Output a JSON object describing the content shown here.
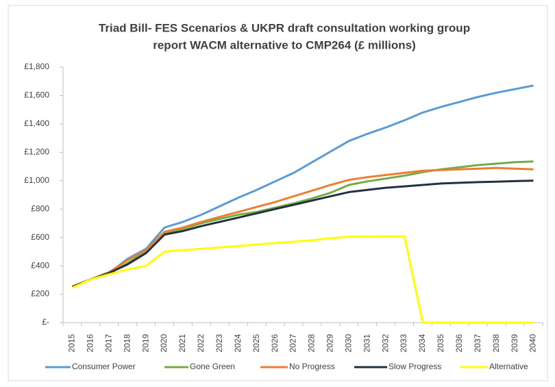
{
  "chart_data": {
    "type": "line",
    "title": [
      "Triad Bill- FES Scenarios & UKPR draft consultation working group",
      "report WACM alternative to CMP264 (£ millions)"
    ],
    "categories": [
      "2015",
      "2016",
      "2017",
      "2018",
      "2019",
      "2020",
      "2021",
      "2022",
      "2023",
      "2024",
      "2025",
      "2026",
      "2027",
      "2028",
      "2029",
      "2030",
      "2031",
      "2032",
      "2033",
      "2034",
      "2035",
      "2036",
      "2037",
      "2038",
      "2039",
      "2040"
    ],
    "series": [
      {
        "name": "Consumer Power",
        "color": "#5b9bd5",
        "values": [
          255,
          305,
          350,
          450,
          520,
          670,
          710,
          760,
          820,
          880,
          935,
          995,
          1055,
          1130,
          1205,
          1280,
          1330,
          1375,
          1425,
          1480,
          1520,
          1555,
          1590,
          1620,
          1645,
          1670
        ]
      },
      {
        "name": "Gone Green",
        "color": "#70ad47",
        "values": [
          250,
          305,
          345,
          420,
          500,
          630,
          660,
          700,
          730,
          760,
          780,
          810,
          840,
          875,
          915,
          970,
          995,
          1015,
          1035,
          1060,
          1080,
          1095,
          1110,
          1120,
          1130,
          1135
        ]
      },
      {
        "name": "No Progress",
        "color": "#ed7d31",
        "values": [
          255,
          305,
          355,
          440,
          510,
          640,
          670,
          710,
          745,
          780,
          815,
          850,
          890,
          930,
          970,
          1005,
          1025,
          1040,
          1055,
          1070,
          1075,
          1080,
          1085,
          1090,
          1085,
          1080
        ]
      },
      {
        "name": "Slow Progress",
        "color": "#223041",
        "values": [
          250,
          305,
          350,
          410,
          490,
          620,
          645,
          680,
          710,
          740,
          770,
          800,
          830,
          860,
          890,
          920,
          935,
          950,
          960,
          970,
          980,
          985,
          990,
          993,
          997,
          1000
        ]
      },
      {
        "name": "Alternative",
        "color": "#ffff00",
        "values": [
          245,
          305,
          340,
          375,
          400,
          500,
          510,
          520,
          530,
          540,
          550,
          560,
          570,
          580,
          595,
          605,
          607,
          608,
          608,
          0,
          0,
          0,
          0,
          0,
          0,
          0
        ]
      }
    ],
    "ylim": [
      0,
      1800
    ],
    "yticks": [
      {
        "value": 0,
        "label": "£-"
      },
      {
        "value": 200,
        "label": "£200"
      },
      {
        "value": 400,
        "label": "£400"
      },
      {
        "value": 600,
        "label": "£600"
      },
      {
        "value": 800,
        "label": "£800"
      },
      {
        "value": 1000,
        "label": "£1,000"
      },
      {
        "value": 1200,
        "label": "£1,200"
      },
      {
        "value": 1400,
        "label": "£1,400"
      },
      {
        "value": 1600,
        "label": "£1,600"
      },
      {
        "value": 1800,
        "label": "£1,800"
      }
    ],
    "grid": false,
    "legend": "bottom"
  }
}
